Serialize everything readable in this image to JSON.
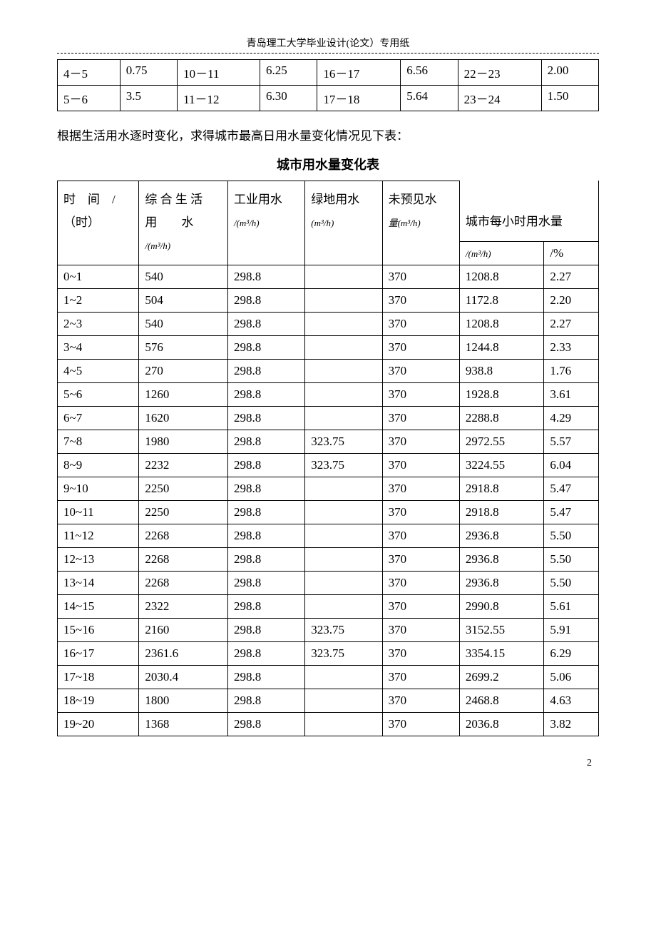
{
  "page_header": "青岛理工大学毕业设计(论文）专用纸",
  "table1": {
    "rows": [
      [
        "4－5",
        "0.75",
        "10－11",
        "6.25",
        "16－17",
        "6.56",
        "22－23",
        "2.00"
      ],
      [
        "5－6",
        "3.5",
        "11－12",
        "6.30",
        "17－18",
        "5.64",
        "23－24",
        "1.50"
      ]
    ]
  },
  "intro_text": "根据生活用水逐时变化，求得城市最高日用水量变化情况见下表：",
  "table2_title": "城市用水量变化表",
  "table2": {
    "headers": {
      "col1_line1": "时　间　/",
      "col1_line2": "（时）",
      "col2_line1": "综 合 生 活",
      "col2_line2": "用　　水",
      "col2_line3": "/(m³/h)",
      "col3_line1": "工业用水",
      "col3_line2": "/(m³/h)",
      "col4_line1": "绿地用水",
      "col4_line2": "(m³/h)",
      "col5_line1": "未预见水",
      "col5_line2": "量(m³/h)",
      "col6": "城市每小时用水量",
      "col6a": "/(m³/h)",
      "col6b": "/%"
    },
    "rows": [
      [
        "0~1",
        "540",
        "298.8",
        "",
        "370",
        "1208.8",
        "2.27"
      ],
      [
        "1~2",
        "504",
        "298.8",
        "",
        "370",
        "1172.8",
        "2.20"
      ],
      [
        "2~3",
        "540",
        "298.8",
        "",
        "370",
        "1208.8",
        "2.27"
      ],
      [
        "3~4",
        "576",
        "298.8",
        "",
        "370",
        "1244.8",
        "2.33"
      ],
      [
        "4~5",
        "270",
        "298.8",
        "",
        "370",
        "938.8",
        "1.76"
      ],
      [
        "5~6",
        "1260",
        "298.8",
        "",
        "370",
        "1928.8",
        "3.61"
      ],
      [
        "6~7",
        "1620",
        "298.8",
        "",
        "370",
        "2288.8",
        "4.29"
      ],
      [
        "7~8",
        "1980",
        "298.8",
        "323.75",
        "370",
        "2972.55",
        "5.57"
      ],
      [
        "8~9",
        "2232",
        "298.8",
        "323.75",
        "370",
        "3224.55",
        "6.04"
      ],
      [
        "9~10",
        "2250",
        "298.8",
        "",
        "370",
        "2918.8",
        "5.47"
      ],
      [
        "10~11",
        "2250",
        "298.8",
        "",
        "370",
        "2918.8",
        "5.47"
      ],
      [
        "11~12",
        "2268",
        "298.8",
        "",
        "370",
        "2936.8",
        "5.50"
      ],
      [
        "12~13",
        "2268",
        "298.8",
        "",
        "370",
        "2936.8",
        "5.50"
      ],
      [
        "13~14",
        "2268",
        "298.8",
        "",
        "370",
        "2936.8",
        "5.50"
      ],
      [
        "14~15",
        "2322",
        "298.8",
        "",
        "370",
        "2990.8",
        "5.61"
      ],
      [
        "15~16",
        "2160",
        "298.8",
        "323.75",
        "370",
        "3152.55",
        "5.91"
      ],
      [
        "16~17",
        "2361.6",
        "298.8",
        "323.75",
        "370",
        "3354.15",
        "6.29"
      ],
      [
        "17~18",
        "2030.4",
        "298.8",
        "",
        "370",
        "2699.2",
        "5.06"
      ],
      [
        "18~19",
        "1800",
        "298.8",
        "",
        "370",
        "2468.8",
        "4.63"
      ],
      [
        "19~20",
        "1368",
        "298.8",
        "",
        "370",
        "2036.8",
        "3.82"
      ]
    ]
  },
  "page_number": "2"
}
